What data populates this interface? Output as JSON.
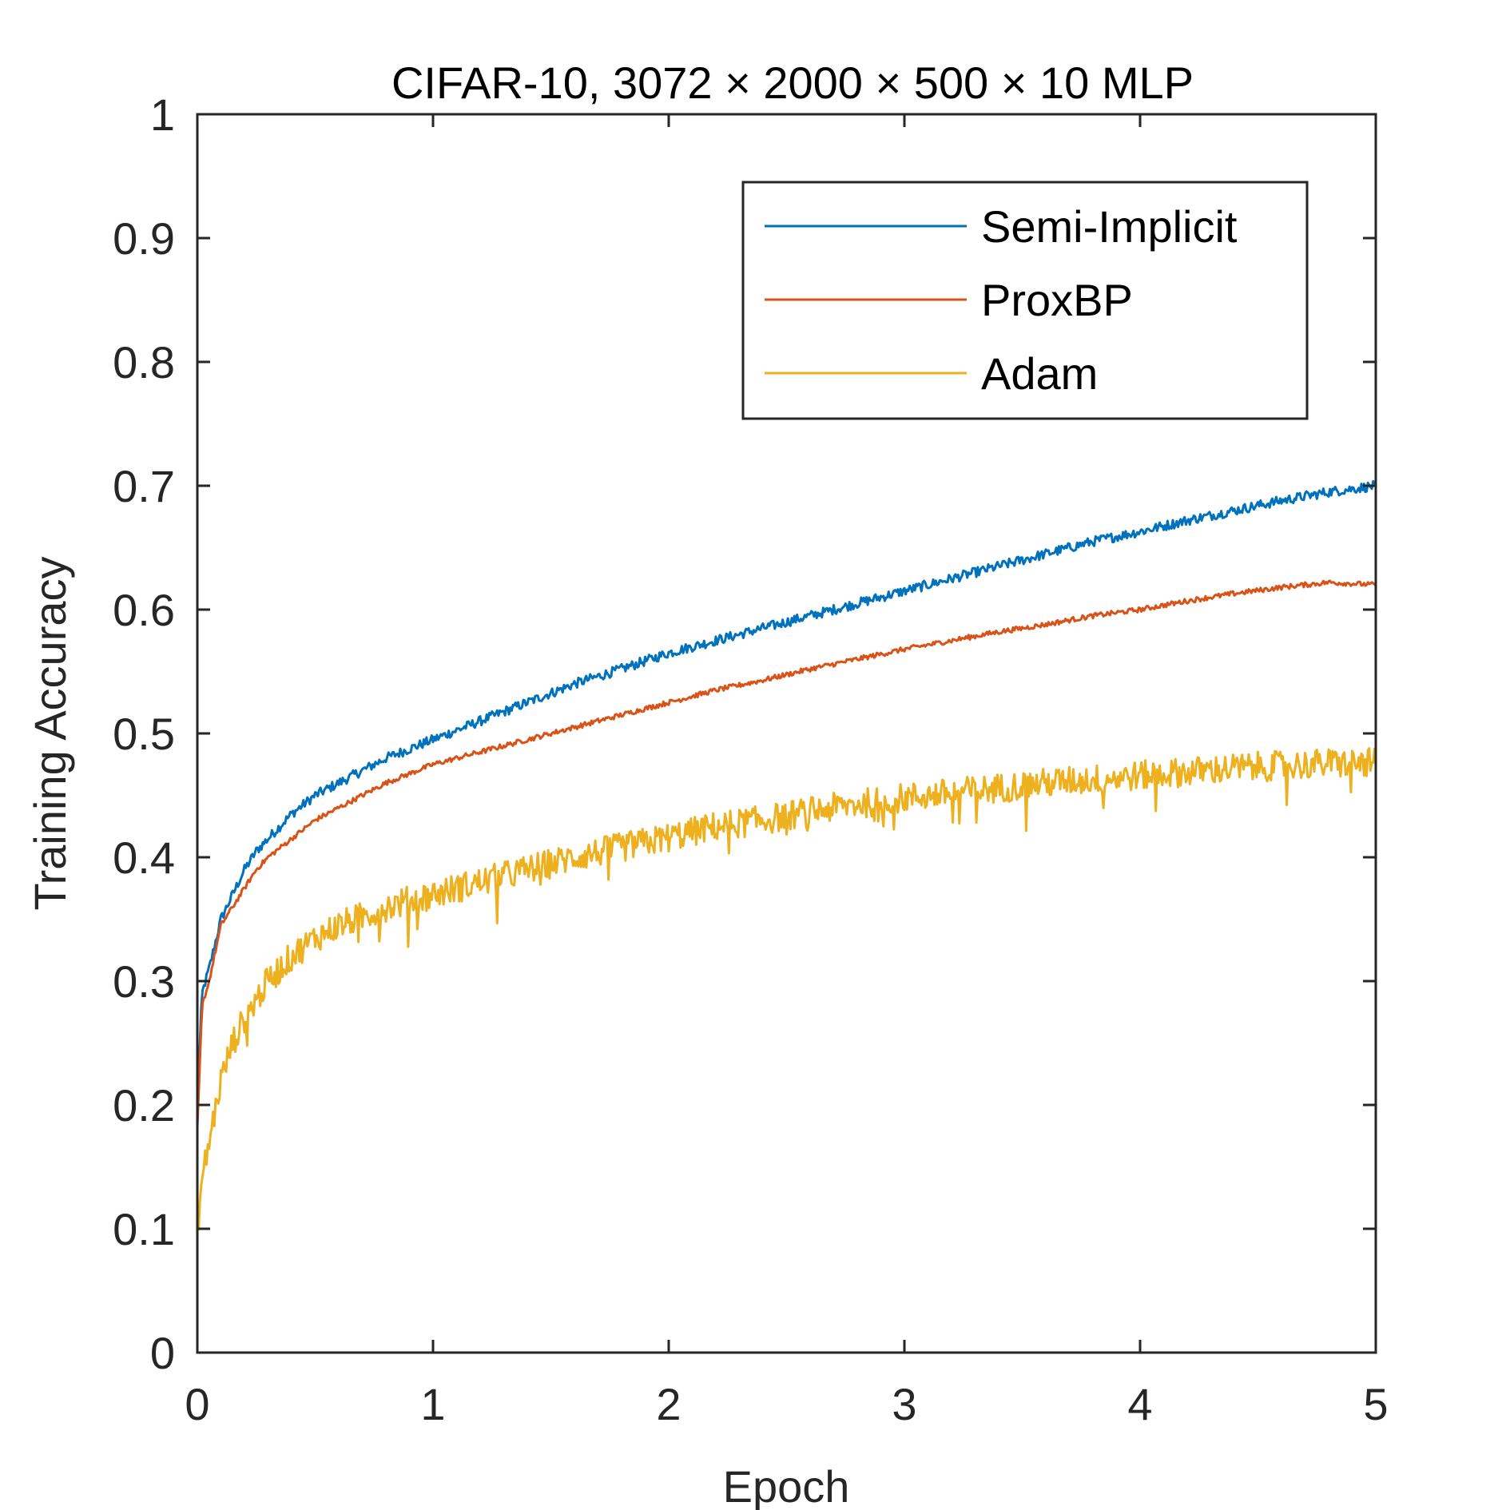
{
  "chart_data": {
    "type": "line",
    "title": "CIFAR-10, 3072 × 2000 × 500 × 10 MLP",
    "xlabel": "Epoch",
    "ylabel": "Training Accuracy",
    "xlim": [
      0,
      5
    ],
    "ylim": [
      0,
      1
    ],
    "xticks": [
      0,
      1,
      2,
      3,
      4,
      5
    ],
    "xtick_labels": [
      "0",
      "1",
      "2",
      "3",
      "4",
      "5"
    ],
    "yticks": [
      0,
      0.1,
      0.2,
      0.3,
      0.4,
      0.5,
      0.6,
      0.7,
      0.8,
      0.9,
      1
    ],
    "ytick_labels": [
      "0",
      "0.1",
      "0.2",
      "0.3",
      "0.4",
      "0.5",
      "0.6",
      "0.7",
      "0.8",
      "0.9",
      "1"
    ],
    "grid": false,
    "legend_position": "top-right",
    "series": [
      {
        "name": "Semi-Implicit",
        "color": "#0072BD",
        "x": [
          0,
          0.02,
          0.05,
          0.1,
          0.15,
          0.2,
          0.25,
          0.3,
          0.4,
          0.5,
          0.6,
          0.7,
          0.8,
          1.0,
          1.2,
          1.4,
          1.6,
          1.8,
          2.0,
          2.2,
          2.4,
          2.6,
          2.8,
          3.0,
          3.2,
          3.4,
          3.6,
          3.8,
          4.0,
          4.2,
          4.4,
          4.6,
          4.8,
          5.0
        ],
        "values": [
          0.2,
          0.29,
          0.31,
          0.35,
          0.37,
          0.39,
          0.405,
          0.415,
          0.435,
          0.45,
          0.46,
          0.47,
          0.48,
          0.495,
          0.51,
          0.525,
          0.54,
          0.552,
          0.565,
          0.575,
          0.585,
          0.595,
          0.605,
          0.615,
          0.625,
          0.635,
          0.645,
          0.655,
          0.663,
          0.672,
          0.68,
          0.688,
          0.695,
          0.7
        ],
        "noise": 0.004
      },
      {
        "name": "ProxBP",
        "color": "#D95319",
        "x": [
          0,
          0.02,
          0.05,
          0.1,
          0.15,
          0.2,
          0.25,
          0.3,
          0.4,
          0.5,
          0.6,
          0.7,
          0.8,
          1.0,
          1.2,
          1.4,
          1.6,
          1.8,
          2.0,
          2.2,
          2.4,
          2.6,
          2.8,
          3.0,
          3.2,
          3.4,
          3.6,
          3.8,
          4.0,
          4.2,
          4.4,
          4.6,
          4.8,
          5.0
        ],
        "values": [
          0.18,
          0.28,
          0.3,
          0.345,
          0.36,
          0.375,
          0.39,
          0.4,
          0.415,
          0.43,
          0.44,
          0.45,
          0.46,
          0.475,
          0.485,
          0.495,
          0.505,
          0.515,
          0.525,
          0.535,
          0.543,
          0.552,
          0.56,
          0.568,
          0.575,
          0.582,
          0.588,
          0.595,
          0.6,
          0.607,
          0.613,
          0.618,
          0.622,
          0.62
        ],
        "noise": 0.002
      },
      {
        "name": "Adam",
        "color": "#EDB120",
        "x": [
          0,
          0.02,
          0.05,
          0.1,
          0.15,
          0.2,
          0.25,
          0.3,
          0.4,
          0.5,
          0.6,
          0.7,
          0.8,
          1.0,
          1.2,
          1.4,
          1.6,
          1.8,
          2.0,
          2.2,
          2.4,
          2.6,
          2.8,
          3.0,
          3.2,
          3.4,
          3.6,
          3.8,
          4.0,
          4.2,
          4.4,
          4.6,
          4.8,
          5.0
        ],
        "values": [
          0.1,
          0.14,
          0.17,
          0.22,
          0.25,
          0.27,
          0.285,
          0.3,
          0.32,
          0.335,
          0.345,
          0.352,
          0.36,
          0.37,
          0.38,
          0.39,
          0.4,
          0.408,
          0.416,
          0.425,
          0.43,
          0.437,
          0.443,
          0.448,
          0.452,
          0.456,
          0.46,
          0.463,
          0.466,
          0.469,
          0.472,
          0.474,
          0.476,
          0.476
        ],
        "noise": 0.012
      }
    ]
  }
}
